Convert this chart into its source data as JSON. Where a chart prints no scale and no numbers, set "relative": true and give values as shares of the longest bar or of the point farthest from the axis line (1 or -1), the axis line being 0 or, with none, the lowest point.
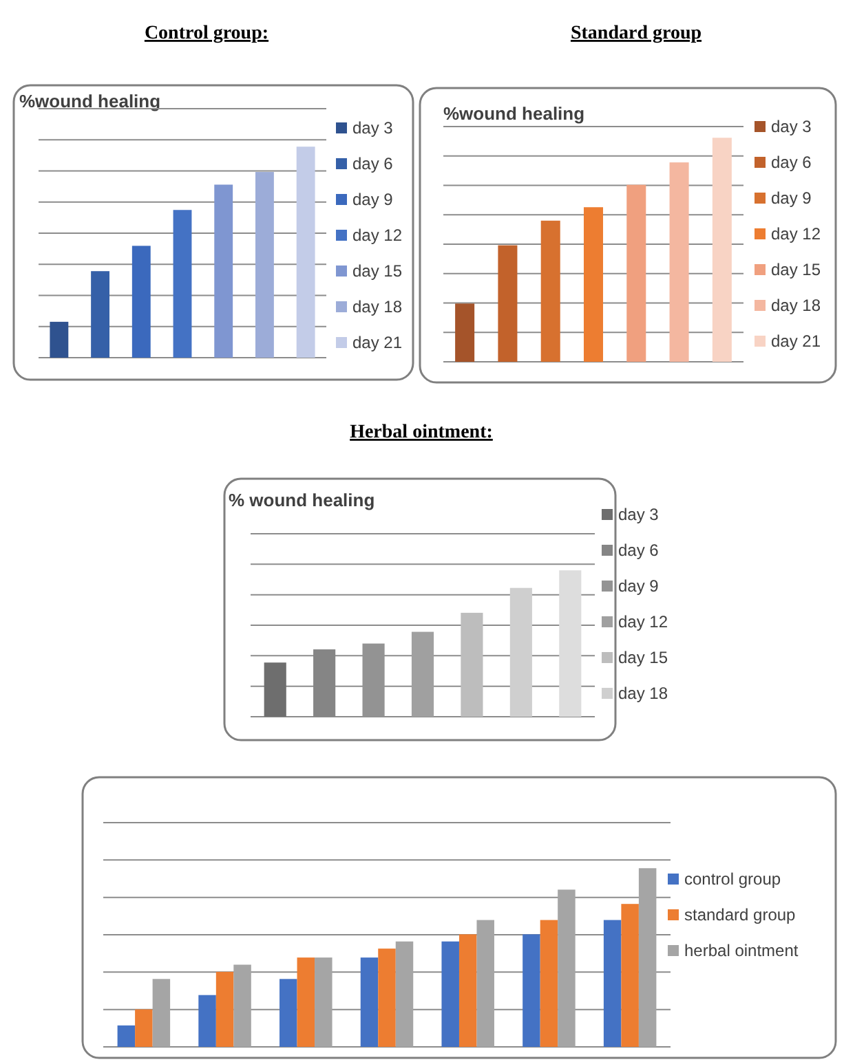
{
  "chart_data": [
    {
      "type": "bar",
      "title": "Control group:",
      "subtitle": "%wound healing",
      "relative": true,
      "stacked": true,
      "grid": "y",
      "legend": "right",
      "categories": [
        null,
        null,
        null,
        null,
        null,
        null,
        null
      ],
      "series": [
        {
          "name": "day 3",
          "color": "#2f528f",
          "values": [
            0.17,
            null,
            null,
            null,
            null,
            null,
            null
          ]
        },
        {
          "name": "day 6",
          "color": "#3560a8",
          "values": [
            null,
            0.41,
            null,
            null,
            null,
            null,
            null
          ]
        },
        {
          "name": "day 9",
          "color": "#3b69bd",
          "values": [
            null,
            null,
            0.53,
            null,
            null,
            null,
            null
          ]
        },
        {
          "name": "day 12",
          "color": "#4472c4",
          "values": [
            null,
            null,
            null,
            0.7,
            null,
            null,
            null
          ]
        },
        {
          "name": "day 15",
          "color": "#7f96d1",
          "values": [
            null,
            null,
            null,
            null,
            0.82,
            null,
            null
          ]
        },
        {
          "name": "day 18",
          "color": "#9cacd8",
          "values": [
            null,
            null,
            null,
            null,
            null,
            0.88,
            null
          ]
        },
        {
          "name": "day 21",
          "color": "#c3cce8",
          "values": [
            null,
            null,
            null,
            null,
            null,
            null,
            1
          ]
        }
      ]
    },
    {
      "type": "bar",
      "title": "Standard group",
      "subtitle": "%wound healing",
      "relative": true,
      "stacked": true,
      "grid": "y",
      "legend": "right",
      "categories": [
        null,
        null,
        null,
        null,
        null,
        null,
        null
      ],
      "series": [
        {
          "name": "day 3",
          "color": "#a5542a",
          "values": [
            0.26,
            null,
            null,
            null,
            null,
            null,
            null
          ]
        },
        {
          "name": "day 6",
          "color": "#c2622b",
          "values": [
            null,
            0.52,
            null,
            null,
            null,
            null,
            null
          ]
        },
        {
          "name": "day 9",
          "color": "#d7712f",
          "values": [
            null,
            null,
            0.63,
            null,
            null,
            null,
            null
          ]
        },
        {
          "name": "day 12",
          "color": "#ed7d31",
          "values": [
            null,
            null,
            null,
            0.69,
            null,
            null,
            null
          ]
        },
        {
          "name": "day 15",
          "color": "#f0a07f",
          "values": [
            null,
            null,
            null,
            null,
            0.79,
            null,
            null
          ]
        },
        {
          "name": "day 18",
          "color": "#f4b7a0",
          "values": [
            null,
            null,
            null,
            null,
            null,
            0.89,
            null
          ]
        },
        {
          "name": "day 21",
          "color": "#f8d3c4",
          "values": [
            null,
            null,
            null,
            null,
            null,
            null,
            1
          ]
        }
      ]
    },
    {
      "type": "bar",
      "title": "Herbal ointment:",
      "subtitle": "% wound healing",
      "relative": true,
      "stacked": true,
      "grid": "y",
      "legend": "right",
      "categories": [
        null,
        null,
        null,
        null,
        null,
        null,
        null
      ],
      "series": [
        {
          "name": "day 3",
          "color": "#6e6e6e",
          "values": [
            0.37,
            null,
            null,
            null,
            null,
            null,
            null
          ]
        },
        {
          "name": "day 6",
          "color": "#858585",
          "values": [
            null,
            0.46,
            null,
            null,
            null,
            null,
            null
          ]
        },
        {
          "name": "day 9",
          "color": "#939393",
          "values": [
            null,
            null,
            0.5,
            null,
            null,
            null,
            null
          ]
        },
        {
          "name": "day 12",
          "color": "#a0a0a0",
          "values": [
            null,
            null,
            null,
            0.58,
            null,
            null,
            null
          ]
        },
        {
          "name": "day 15",
          "color": "#bdbdbd",
          "values": [
            null,
            null,
            null,
            null,
            0.71,
            null,
            null
          ]
        },
        {
          "name": "day 18",
          "color": "#cfcfcf",
          "values": [
            null,
            null,
            null,
            null,
            null,
            0.88,
            null
          ]
        },
        {
          "color": "#dddddd",
          "values": [
            null,
            null,
            null,
            null,
            null,
            null,
            1
          ]
        }
      ]
    },
    {
      "type": "bar",
      "relative": true,
      "grid": "y",
      "legend": "right",
      "categories": [
        null,
        null,
        null,
        null,
        null,
        null,
        null
      ],
      "series": [
        {
          "name": "control group",
          "color": "#4472c4",
          "values": [
            0.12,
            0.29,
            0.38,
            0.5,
            0.59,
            0.63,
            0.71
          ]
        },
        {
          "name": "standard group",
          "color": "#ed7d31",
          "values": [
            0.21,
            0.42,
            0.5,
            0.55,
            0.63,
            0.71,
            0.8
          ]
        },
        {
          "name": "herbal ointment",
          "color": "#a5a5a5",
          "values": [
            0.38,
            0.46,
            0.5,
            0.59,
            0.71,
            0.88,
            1
          ]
        }
      ]
    }
  ]
}
